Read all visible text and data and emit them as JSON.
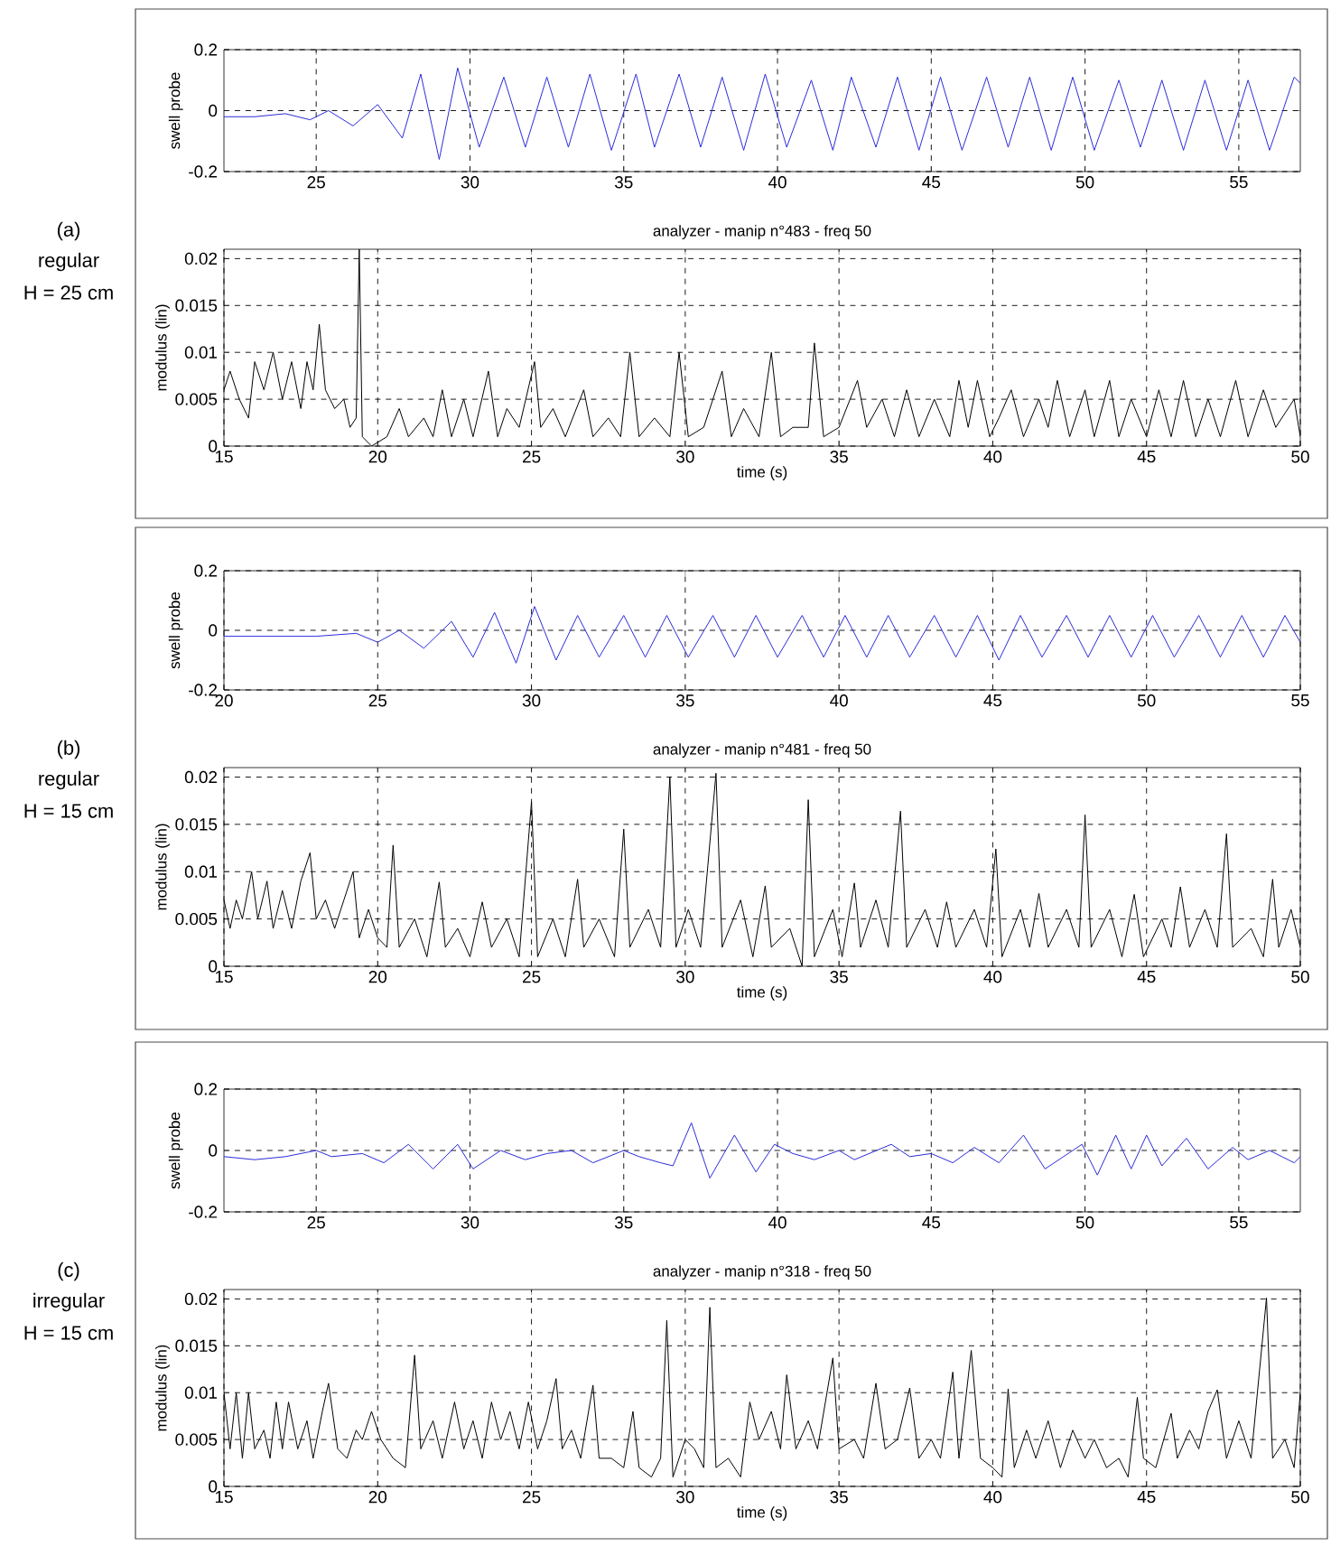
{
  "chart_data": [
    {
      "type": "line",
      "ylabel": "swell probe",
      "annotations": [
        "(a)",
        "regular",
        "H = 25 cm"
      ],
      "xlim": [
        22,
        57
      ],
      "ylim": [
        -0.2,
        0.2
      ],
      "xticks": [
        25,
        30,
        35,
        40,
        45,
        50,
        55
      ],
      "yticks": [
        -0.2,
        0,
        0.2
      ],
      "grid": true,
      "color": "#2b2bd9",
      "x": [
        22,
        23,
        24,
        24.8,
        25.4,
        26.2,
        27.0,
        27.8,
        28.4,
        29.0,
        29.6,
        30.3,
        31.1,
        31.8,
        32.5,
        33.2,
        33.9,
        34.6,
        35.4,
        36.0,
        36.8,
        37.5,
        38.2,
        38.9,
        39.6,
        40.3,
        41.1,
        41.8,
        42.4,
        43.2,
        43.9,
        44.6,
        45.3,
        46.0,
        46.8,
        47.5,
        48.2,
        48.9,
        49.6,
        50.3,
        51.1,
        51.8,
        52.5,
        53.2,
        53.9,
        54.6,
        55.3,
        56.0,
        56.8,
        57
      ],
      "values": [
        -0.02,
        -0.02,
        -0.01,
        -0.03,
        0.0,
        -0.05,
        0.02,
        -0.09,
        0.12,
        -0.16,
        0.14,
        -0.12,
        0.11,
        -0.12,
        0.11,
        -0.12,
        0.12,
        -0.13,
        0.12,
        -0.12,
        0.12,
        -0.12,
        0.11,
        -0.13,
        0.12,
        -0.12,
        0.1,
        -0.13,
        0.11,
        -0.12,
        0.11,
        -0.13,
        0.11,
        -0.13,
        0.11,
        -0.12,
        0.11,
        -0.13,
        0.11,
        -0.13,
        0.1,
        -0.12,
        0.1,
        -0.13,
        0.1,
        -0.13,
        0.1,
        -0.13,
        0.11,
        0.09
      ]
    },
    {
      "type": "line",
      "title": "analyzer - manip n°483 - freq 50",
      "xlabel": "time (s)",
      "ylabel": "modulus (lin)",
      "xlim": [
        15,
        50
      ],
      "ylim": [
        0,
        0.021
      ],
      "xticks": [
        15,
        20,
        25,
        30,
        35,
        40,
        45,
        50
      ],
      "yticks": [
        0,
        0.005,
        0.01,
        0.015,
        0.02
      ],
      "grid": true,
      "color": "#000000",
      "x": [
        15,
        15.2,
        15.5,
        15.8,
        16,
        16.3,
        16.6,
        16.9,
        17.2,
        17.5,
        17.7,
        17.9,
        18.1,
        18.3,
        18.6,
        18.9,
        19.1,
        19.3,
        19.4,
        19.5,
        19.8,
        20.3,
        20.7,
        21,
        21.5,
        21.8,
        22.1,
        22.4,
        22.8,
        23.1,
        23.6,
        23.9,
        24.2,
        24.6,
        25.1,
        25.3,
        25.7,
        26.1,
        26.7,
        27,
        27.5,
        27.9,
        28.2,
        28.5,
        29,
        29.5,
        29.8,
        30.1,
        30.6,
        31.2,
        31.5,
        31.9,
        32.4,
        32.8,
        33.1,
        33.5,
        34.0,
        34.2,
        34.5,
        35,
        35.6,
        35.9,
        36.4,
        36.8,
        37.2,
        37.6,
        38.1,
        38.6,
        38.9,
        39.2,
        39.5,
        39.9,
        40.2,
        40.6,
        41,
        41.5,
        41.8,
        42.1,
        42.5,
        43,
        43.3,
        43.8,
        44.1,
        44.5,
        45,
        45.4,
        45.8,
        46.2,
        46.6,
        47,
        47.4,
        47.9,
        48.3,
        48.8,
        49.2,
        49.8,
        50
      ],
      "values": [
        0.006,
        0.008,
        0.005,
        0.003,
        0.009,
        0.006,
        0.01,
        0.005,
        0.009,
        0.004,
        0.009,
        0.006,
        0.013,
        0.006,
        0.004,
        0.005,
        0.002,
        0.003,
        0.021,
        0.001,
        0.0,
        0.001,
        0.004,
        0.001,
        0.003,
        0.001,
        0.006,
        0.001,
        0.005,
        0.001,
        0.008,
        0.001,
        0.004,
        0.002,
        0.009,
        0.002,
        0.004,
        0.001,
        0.006,
        0.001,
        0.003,
        0.001,
        0.01,
        0.001,
        0.003,
        0.001,
        0.01,
        0.001,
        0.002,
        0.008,
        0.001,
        0.004,
        0.001,
        0.01,
        0.001,
        0.002,
        0.002,
        0.011,
        0.001,
        0.002,
        0.007,
        0.002,
        0.005,
        0.001,
        0.006,
        0.001,
        0.005,
        0.001,
        0.007,
        0.002,
        0.007,
        0.001,
        0.003,
        0.006,
        0.001,
        0.005,
        0.002,
        0.007,
        0.001,
        0.006,
        0.001,
        0.007,
        0.001,
        0.005,
        0.001,
        0.006,
        0.001,
        0.007,
        0.001,
        0.005,
        0.001,
        0.007,
        0.001,
        0.006,
        0.002,
        0.005,
        0.001
      ]
    },
    {
      "type": "line",
      "ylabel": "swell probe",
      "annotations": [
        "(b)",
        "regular",
        "H = 15 cm"
      ],
      "xlim": [
        20,
        55
      ],
      "ylim": [
        -0.2,
        0.2
      ],
      "xticks": [
        20,
        25,
        30,
        35,
        40,
        45,
        50,
        55
      ],
      "yticks": [
        -0.2,
        0,
        0.2
      ],
      "grid": true,
      "color": "#2b2bd9",
      "x": [
        20,
        21,
        22,
        23,
        24.3,
        25,
        25.7,
        26.5,
        27.4,
        28.1,
        28.8,
        29.5,
        30.1,
        30.8,
        31.5,
        32.2,
        33.0,
        33.7,
        34.4,
        35.1,
        35.9,
        36.6,
        37.3,
        38.0,
        38.8,
        39.5,
        40.2,
        40.9,
        41.6,
        42.3,
        43.1,
        43.8,
        44.5,
        45.2,
        45.9,
        46.6,
        47.4,
        48.1,
        48.8,
        49.5,
        50.2,
        50.9,
        51.7,
        52.4,
        53.1,
        53.8,
        54.5,
        55
      ],
      "values": [
        -0.02,
        -0.02,
        -0.02,
        -0.02,
        -0.01,
        -0.04,
        0.0,
        -0.06,
        0.03,
        -0.09,
        0.06,
        -0.11,
        0.08,
        -0.1,
        0.05,
        -0.09,
        0.05,
        -0.09,
        0.05,
        -0.09,
        0.05,
        -0.09,
        0.05,
        -0.09,
        0.05,
        -0.09,
        0.05,
        -0.09,
        0.05,
        -0.09,
        0.05,
        -0.09,
        0.05,
        -0.1,
        0.05,
        -0.09,
        0.05,
        -0.09,
        0.05,
        -0.09,
        0.05,
        -0.09,
        0.05,
        -0.09,
        0.05,
        -0.09,
        0.05,
        -0.04
      ]
    },
    {
      "type": "line",
      "title": "analyzer - manip n°481 - freq 50",
      "xlabel": "time (s)",
      "ylabel": "modulus (lin)",
      "xlim": [
        15,
        50
      ],
      "ylim": [
        0,
        0.021
      ],
      "xticks": [
        15,
        20,
        25,
        30,
        35,
        40,
        45,
        50
      ],
      "yticks": [
        0,
        0.005,
        0.01,
        0.015,
        0.02
      ],
      "grid": true,
      "color": "#000000",
      "x": [
        15,
        15.2,
        15.4,
        15.6,
        15.9,
        16.1,
        16.4,
        16.6,
        16.9,
        17.2,
        17.5,
        17.8,
        18.0,
        18.3,
        18.6,
        18.9,
        19.2,
        19.4,
        19.7,
        20.0,
        20.3,
        20.5,
        20.7,
        21.2,
        21.6,
        22.0,
        22.2,
        22.6,
        23.0,
        23.4,
        23.7,
        24.2,
        24.6,
        25.0,
        25.2,
        25.7,
        26.1,
        26.5,
        26.7,
        27.2,
        27.7,
        28.0,
        28.2,
        28.8,
        29.2,
        29.5,
        29.7,
        30.1,
        30.5,
        31.0,
        31.2,
        31.8,
        32.2,
        32.6,
        32.8,
        33.4,
        33.8,
        34.0,
        34.2,
        34.8,
        35.1,
        35.5,
        35.7,
        36.2,
        36.6,
        37.0,
        37.2,
        37.8,
        38.2,
        38.5,
        38.8,
        39.4,
        39.8,
        40.1,
        40.3,
        40.9,
        41.2,
        41.5,
        41.8,
        42.4,
        42.8,
        43.0,
        43.2,
        43.8,
        44.2,
        44.6,
        44.9,
        45.5,
        45.8,
        46.1,
        46.4,
        46.9,
        47.3,
        47.6,
        47.8,
        48.4,
        48.8,
        49.1,
        49.3,
        49.7,
        50.0
      ],
      "values": [
        0.007,
        0.004,
        0.007,
        0.005,
        0.01,
        0.005,
        0.009,
        0.004,
        0.008,
        0.004,
        0.009,
        0.012,
        0.005,
        0.007,
        0.004,
        0.007,
        0.01,
        0.003,
        0.006,
        0.003,
        0.002,
        0.0128,
        0.002,
        0.005,
        0.001,
        0.0089,
        0.002,
        0.004,
        0.001,
        0.0068,
        0.002,
        0.005,
        0.001,
        0.0174,
        0.001,
        0.005,
        0.001,
        0.0092,
        0.002,
        0.005,
        0.001,
        0.0145,
        0.002,
        0.006,
        0.002,
        0.02,
        0.002,
        0.006,
        0.002,
        0.0204,
        0.002,
        0.007,
        0.001,
        0.0085,
        0.002,
        0.004,
        0.0,
        0.0176,
        0.001,
        0.006,
        0.001,
        0.0088,
        0.002,
        0.007,
        0.002,
        0.0164,
        0.002,
        0.006,
        0.002,
        0.0068,
        0.002,
        0.006,
        0.002,
        0.0124,
        0.001,
        0.006,
        0.002,
        0.0077,
        0.002,
        0.006,
        0.002,
        0.016,
        0.002,
        0.006,
        0.001,
        0.0076,
        0.001,
        0.005,
        0.002,
        0.0084,
        0.002,
        0.006,
        0.002,
        0.014,
        0.002,
        0.004,
        0.001,
        0.0092,
        0.002,
        0.006,
        0.002
      ]
    },
    {
      "type": "line",
      "ylabel": "swell probe",
      "annotations": [
        "(c)",
        "irregular",
        "H = 15 cm"
      ],
      "xlim": [
        22,
        57
      ],
      "ylim": [
        -0.2,
        0.2
      ],
      "xticks": [
        25,
        30,
        35,
        40,
        45,
        50,
        55
      ],
      "yticks": [
        -0.2,
        0,
        0.2
      ],
      "grid": true,
      "color": "#2b2bd9",
      "x": [
        22,
        23,
        24,
        25,
        25.5,
        26.5,
        27.2,
        28,
        28.8,
        29.6,
        30.1,
        31,
        31.8,
        32.5,
        33.3,
        34,
        35,
        35.5,
        36.2,
        36.6,
        37.2,
        37.8,
        38.6,
        39.3,
        39.9,
        40.5,
        41.2,
        42,
        42.5,
        43.7,
        44.3,
        45,
        45.7,
        46.4,
        47.2,
        48,
        48.7,
        49.3,
        49.9,
        50.4,
        51,
        51.5,
        52,
        52.5,
        53.3,
        54,
        54.8,
        55.3,
        56,
        56.8,
        57
      ],
      "values": [
        -0.02,
        -0.03,
        -0.02,
        0.0,
        -0.02,
        -0.01,
        -0.04,
        0.02,
        -0.06,
        0.02,
        -0.06,
        0.0,
        -0.03,
        -0.01,
        0.0,
        -0.04,
        0.0,
        -0.02,
        -0.04,
        -0.05,
        0.09,
        -0.09,
        0.05,
        -0.07,
        0.02,
        -0.01,
        -0.03,
        0.0,
        -0.03,
        0.02,
        -0.02,
        -0.01,
        -0.04,
        0.01,
        -0.04,
        0.05,
        -0.06,
        -0.02,
        0.02,
        -0.08,
        0.05,
        -0.06,
        0.05,
        -0.05,
        0.04,
        -0.06,
        0.01,
        -0.03,
        0.0,
        -0.04,
        -0.02
      ]
    },
    {
      "type": "line",
      "title": "analyzer - manip n°318 - freq 50",
      "xlabel": "time (s)",
      "ylabel": "modulus (lin)",
      "xlim": [
        15,
        50
      ],
      "ylim": [
        0,
        0.021
      ],
      "xticks": [
        15,
        20,
        25,
        30,
        35,
        40,
        45,
        50
      ],
      "yticks": [
        0,
        0.005,
        0.01,
        0.015,
        0.02
      ],
      "grid": true,
      "color": "#000000",
      "x": [
        15,
        15.2,
        15.4,
        15.6,
        15.8,
        16.0,
        16.3,
        16.5,
        16.7,
        16.9,
        17.1,
        17.4,
        17.7,
        17.9,
        18.2,
        18.4,
        18.7,
        19.0,
        19.3,
        19.5,
        19.8,
        20.1,
        20.5,
        20.9,
        21.2,
        21.4,
        21.8,
        22.1,
        22.5,
        22.8,
        23.1,
        23.4,
        23.7,
        24.0,
        24.3,
        24.6,
        24.9,
        25.2,
        25.5,
        25.8,
        26.0,
        26.3,
        26.6,
        27.0,
        27.2,
        27.6,
        28.0,
        28.3,
        28.5,
        28.9,
        29.2,
        29.4,
        29.6,
        30.0,
        30.3,
        30.6,
        30.8,
        31.0,
        31.4,
        31.8,
        32.1,
        32.4,
        32.8,
        33.1,
        33.3,
        33.6,
        34.0,
        34.3,
        34.8,
        35.0,
        35.5,
        35.8,
        36.2,
        36.5,
        36.9,
        37.3,
        37.6,
        38.0,
        38.3,
        38.7,
        38.9,
        39.3,
        39.6,
        40.0,
        40.3,
        40.5,
        40.7,
        41.1,
        41.4,
        41.8,
        42.2,
        42.6,
        43.0,
        43.3,
        43.7,
        44.1,
        44.4,
        44.7,
        44.9,
        45.3,
        45.8,
        46.0,
        46.4,
        46.7,
        47.0,
        47.3,
        47.6,
        48.0,
        48.4,
        48.9,
        49.1,
        49.5,
        49.8,
        50.0
      ],
      "values": [
        0.01,
        0.004,
        0.01,
        0.003,
        0.01,
        0.004,
        0.006,
        0.003,
        0.009,
        0.004,
        0.009,
        0.004,
        0.007,
        0.003,
        0.008,
        0.011,
        0.004,
        0.003,
        0.006,
        0.005,
        0.008,
        0.005,
        0.003,
        0.002,
        0.014,
        0.004,
        0.007,
        0.003,
        0.009,
        0.004,
        0.007,
        0.003,
        0.009,
        0.005,
        0.008,
        0.004,
        0.009,
        0.004,
        0.007,
        0.0115,
        0.004,
        0.006,
        0.003,
        0.0108,
        0.003,
        0.003,
        0.002,
        0.008,
        0.002,
        0.001,
        0.003,
        0.0177,
        0.001,
        0.005,
        0.004,
        0.002,
        0.0191,
        0.002,
        0.003,
        0.001,
        0.009,
        0.005,
        0.008,
        0.004,
        0.0119,
        0.004,
        0.007,
        0.004,
        0.0137,
        0.004,
        0.005,
        0.003,
        0.011,
        0.004,
        0.005,
        0.0105,
        0.003,
        0.005,
        0.003,
        0.0122,
        0.003,
        0.0145,
        0.003,
        0.002,
        0.001,
        0.0104,
        0.002,
        0.006,
        0.003,
        0.007,
        0.002,
        0.006,
        0.003,
        0.005,
        0.002,
        0.003,
        0.001,
        0.0095,
        0.003,
        0.002,
        0.0078,
        0.003,
        0.006,
        0.004,
        0.008,
        0.0103,
        0.003,
        0.007,
        0.003,
        0.0201,
        0.003,
        0.005,
        0.002,
        0.01
      ]
    }
  ]
}
